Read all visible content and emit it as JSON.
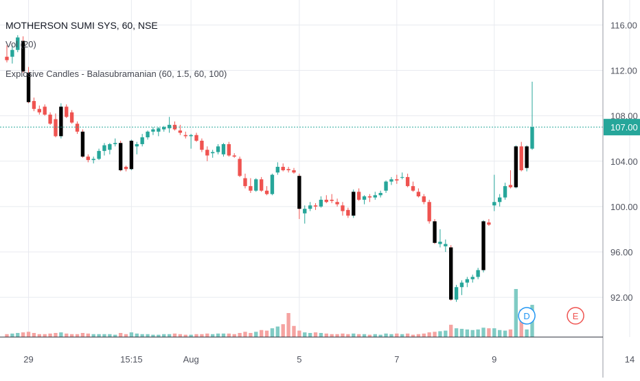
{
  "legend": {
    "title": "MOTHERSON SUMI SYS, 60, NSE",
    "volume": "Vol (20)",
    "indicator": "Explosive Candles - Balasubramanian (60, 1.5, 60, 100)"
  },
  "colors": {
    "up": "#26a69a",
    "down": "#ef5350",
    "explosive": "#000000",
    "vol_up": "#80cbc4",
    "vol_down": "#f5a3a1",
    "last_price_bg": "#26a69a",
    "grid": "#e8eaef",
    "axis_text": "#50535e",
    "dividend_badge": "#2196f3",
    "earnings_badge": "#ef5350"
  },
  "chart_data": {
    "type": "candlestick",
    "title": "MOTHERSON SUMI SYS, 60, NSE",
    "y_axis_ticks": [
      "116.00",
      "112.00",
      "108.00",
      "104.00",
      "100.00",
      "96.00",
      "92.00"
    ],
    "x_axis_ticks": [
      "29",
      "15:15",
      "Aug",
      "5",
      "7",
      "9",
      "14"
    ],
    "last_price": "107.00",
    "ylim": [
      88.5,
      118.2
    ],
    "grid": true,
    "event_badges": [
      {
        "label": "D",
        "kind": "dividend"
      },
      {
        "label": "E",
        "kind": "earnings"
      }
    ],
    "candles": [
      {
        "o": 113.2,
        "h": 114.2,
        "l": 112.7,
        "c": 112.9,
        "v": 0.5
      },
      {
        "o": 113.2,
        "h": 114.2,
        "l": 112.6,
        "c": 113.8,
        "v": 0.6
      },
      {
        "o": 113.8,
        "h": 115.1,
        "l": 113.6,
        "c": 114.9,
        "v": 0.7
      },
      {
        "o": 114.6,
        "h": 115.0,
        "l": 111.8,
        "c": 111.9,
        "v": 0.8,
        "x": true
      },
      {
        "o": 111.8,
        "h": 112.3,
        "l": 109.1,
        "c": 109.2,
        "v": 0.9,
        "x": true
      },
      {
        "o": 109.3,
        "h": 109.6,
        "l": 108.4,
        "c": 108.6,
        "v": 0.7
      },
      {
        "o": 108.6,
        "h": 108.9,
        "l": 108.1,
        "c": 108.3,
        "v": 0.5
      },
      {
        "o": 108.8,
        "h": 109.0,
        "l": 108.0,
        "c": 108.1,
        "v": 0.5
      },
      {
        "o": 108.1,
        "h": 108.3,
        "l": 107.2,
        "c": 107.3,
        "v": 0.6
      },
      {
        "o": 107.7,
        "h": 108.2,
        "l": 106.1,
        "c": 106.2,
        "v": 0.7
      },
      {
        "o": 106.2,
        "h": 109.1,
        "l": 106.0,
        "c": 108.8,
        "v": 0.8,
        "x": true
      },
      {
        "o": 108.8,
        "h": 109.0,
        "l": 107.8,
        "c": 107.9,
        "v": 0.6
      },
      {
        "o": 108.3,
        "h": 108.5,
        "l": 107.3,
        "c": 107.4,
        "v": 0.5
      },
      {
        "o": 107.3,
        "h": 107.5,
        "l": 106.4,
        "c": 106.6,
        "v": 0.5
      },
      {
        "o": 106.6,
        "h": 106.8,
        "l": 104.3,
        "c": 104.4,
        "v": 0.7,
        "x": true
      },
      {
        "o": 104.4,
        "h": 104.6,
        "l": 103.9,
        "c": 104.1,
        "v": 0.6
      },
      {
        "o": 104.1,
        "h": 104.4,
        "l": 103.8,
        "c": 104.2,
        "v": 0.5
      },
      {
        "o": 104.2,
        "h": 105.1,
        "l": 104.1,
        "c": 104.9,
        "v": 0.5
      },
      {
        "o": 104.9,
        "h": 105.6,
        "l": 104.5,
        "c": 105.4,
        "v": 0.5
      },
      {
        "o": 105.0,
        "h": 105.6,
        "l": 104.6,
        "c": 105.5,
        "v": 0.5
      },
      {
        "o": 105.5,
        "h": 106.0,
        "l": 105.3,
        "c": 105.6,
        "v": 0.4
      },
      {
        "o": 105.6,
        "h": 105.8,
        "l": 103.1,
        "c": 103.2,
        "v": 0.7,
        "x": true
      },
      {
        "o": 103.5,
        "h": 103.6,
        "l": 103.1,
        "c": 103.3,
        "v": 0.5
      },
      {
        "o": 103.3,
        "h": 105.9,
        "l": 103.2,
        "c": 105.8,
        "v": 0.8,
        "x": true
      },
      {
        "o": 105.3,
        "h": 105.7,
        "l": 104.6,
        "c": 105.5,
        "v": 0.6
      },
      {
        "o": 105.5,
        "h": 106.4,
        "l": 105.3,
        "c": 106.1,
        "v": 0.5
      },
      {
        "o": 106.1,
        "h": 106.7,
        "l": 105.9,
        "c": 106.6,
        "v": 0.5
      },
      {
        "o": 106.6,
        "h": 107.0,
        "l": 106.3,
        "c": 106.8,
        "v": 0.4
      },
      {
        "o": 106.6,
        "h": 107.0,
        "l": 106.2,
        "c": 106.9,
        "v": 0.4
      },
      {
        "o": 106.8,
        "h": 107.1,
        "l": 106.6,
        "c": 107.0,
        "v": 0.5
      },
      {
        "o": 106.9,
        "h": 107.9,
        "l": 106.5,
        "c": 107.2,
        "v": 0.5
      },
      {
        "o": 107.2,
        "h": 107.5,
        "l": 106.7,
        "c": 106.8,
        "v": 0.6
      },
      {
        "o": 106.7,
        "h": 107.2,
        "l": 106.3,
        "c": 106.5,
        "v": 0.5
      },
      {
        "o": 106.3,
        "h": 106.6,
        "l": 106.0,
        "c": 106.2,
        "v": 0.4
      },
      {
        "o": 106.2,
        "h": 106.4,
        "l": 105.1,
        "c": 106.3,
        "v": 0.4
      },
      {
        "o": 106.3,
        "h": 106.5,
        "l": 105.7,
        "c": 105.8,
        "v": 0.5
      },
      {
        "o": 105.8,
        "h": 106.0,
        "l": 104.8,
        "c": 105.0,
        "v": 0.5
      },
      {
        "o": 105.0,
        "h": 105.3,
        "l": 104.0,
        "c": 104.5,
        "v": 0.6
      },
      {
        "o": 104.7,
        "h": 105.0,
        "l": 104.3,
        "c": 104.8,
        "v": 0.5
      },
      {
        "o": 104.8,
        "h": 105.5,
        "l": 104.6,
        "c": 105.3,
        "v": 0.6
      },
      {
        "o": 104.6,
        "h": 105.6,
        "l": 104.4,
        "c": 105.5,
        "v": 0.6
      },
      {
        "o": 105.5,
        "h": 105.7,
        "l": 104.4,
        "c": 104.5,
        "v": 0.6
      },
      {
        "o": 104.5,
        "h": 104.7,
        "l": 104.3,
        "c": 104.4,
        "v": 0.5
      },
      {
        "o": 104.2,
        "h": 104.4,
        "l": 102.6,
        "c": 102.7,
        "v": 0.7
      },
      {
        "o": 102.5,
        "h": 102.9,
        "l": 101.6,
        "c": 101.8,
        "v": 0.9
      },
      {
        "o": 101.8,
        "h": 102.5,
        "l": 101.2,
        "c": 101.4,
        "v": 0.7
      },
      {
        "o": 101.4,
        "h": 102.5,
        "l": 101.3,
        "c": 102.4,
        "v": 0.9
      },
      {
        "o": 102.4,
        "h": 102.6,
        "l": 101.3,
        "c": 101.4,
        "v": 1.2
      },
      {
        "o": 101.4,
        "h": 101.8,
        "l": 101.0,
        "c": 101.1,
        "v": 1.1
      },
      {
        "o": 101.1,
        "h": 102.9,
        "l": 101.0,
        "c": 102.8,
        "v": 1.5
      },
      {
        "o": 103.0,
        "h": 103.9,
        "l": 102.8,
        "c": 103.5,
        "v": 1.8
      },
      {
        "o": 103.5,
        "h": 103.8,
        "l": 103.1,
        "c": 103.2,
        "v": 2.2
      },
      {
        "o": 103.3,
        "h": 103.5,
        "l": 103.0,
        "c": 103.2,
        "v": 4.1
      },
      {
        "o": 103.2,
        "h": 103.4,
        "l": 102.9,
        "c": 103.0,
        "v": 1.9
      },
      {
        "o": 102.7,
        "h": 102.9,
        "l": 98.9,
        "c": 99.8,
        "v": 1.1,
        "x": true
      },
      {
        "o": 99.4,
        "h": 100.1,
        "l": 98.5,
        "c": 99.8,
        "v": 0.8
      },
      {
        "o": 99.8,
        "h": 100.4,
        "l": 99.6,
        "c": 100.1,
        "v": 0.7
      },
      {
        "o": 100.1,
        "h": 100.3,
        "l": 99.7,
        "c": 100.0,
        "v": 0.8
      },
      {
        "o": 100.0,
        "h": 100.9,
        "l": 99.9,
        "c": 100.6,
        "v": 0.7
      },
      {
        "o": 100.6,
        "h": 101.0,
        "l": 100.3,
        "c": 100.4,
        "v": 0.6
      },
      {
        "o": 100.6,
        "h": 101.1,
        "l": 100.3,
        "c": 100.5,
        "v": 0.5
      },
      {
        "o": 100.4,
        "h": 100.7,
        "l": 100.0,
        "c": 100.2,
        "v": 0.5
      },
      {
        "o": 100.1,
        "h": 100.4,
        "l": 99.2,
        "c": 99.6,
        "v": 0.6
      },
      {
        "o": 99.7,
        "h": 99.9,
        "l": 99.0,
        "c": 99.2,
        "v": 0.5
      },
      {
        "o": 99.2,
        "h": 101.5,
        "l": 99.0,
        "c": 101.3,
        "v": 0.6,
        "x": true
      },
      {
        "o": 101.3,
        "h": 101.6,
        "l": 100.5,
        "c": 100.6,
        "v": 0.5
      },
      {
        "o": 100.6,
        "h": 101.0,
        "l": 100.2,
        "c": 100.9,
        "v": 0.5
      },
      {
        "o": 100.9,
        "h": 101.1,
        "l": 100.4,
        "c": 100.8,
        "v": 0.4
      },
      {
        "o": 100.8,
        "h": 101.3,
        "l": 100.6,
        "c": 101.0,
        "v": 0.5
      },
      {
        "o": 101.0,
        "h": 101.4,
        "l": 100.8,
        "c": 101.2,
        "v": 0.4
      },
      {
        "o": 101.4,
        "h": 102.3,
        "l": 101.2,
        "c": 102.2,
        "v": 0.6
      },
      {
        "o": 102.2,
        "h": 102.6,
        "l": 101.9,
        "c": 102.4,
        "v": 0.5
      },
      {
        "o": 102.4,
        "h": 102.8,
        "l": 102.0,
        "c": 102.3,
        "v": 0.6
      },
      {
        "o": 102.6,
        "h": 103.0,
        "l": 102.4,
        "c": 102.6,
        "v": 0.5
      },
      {
        "o": 102.6,
        "h": 102.9,
        "l": 101.7,
        "c": 101.8,
        "v": 0.6
      },
      {
        "o": 101.8,
        "h": 102.2,
        "l": 101.3,
        "c": 101.4,
        "v": 0.4
      },
      {
        "o": 101.3,
        "h": 101.6,
        "l": 100.8,
        "c": 100.9,
        "v": 0.5
      },
      {
        "o": 100.9,
        "h": 101.1,
        "l": 100.2,
        "c": 100.4,
        "v": 0.6
      },
      {
        "o": 100.4,
        "h": 100.6,
        "l": 98.5,
        "c": 98.7,
        "v": 0.8
      },
      {
        "o": 98.7,
        "h": 98.9,
        "l": 96.7,
        "c": 96.8,
        "v": 0.9,
        "x": true
      },
      {
        "o": 96.7,
        "h": 98.0,
        "l": 96.4,
        "c": 96.9,
        "v": 1.0
      },
      {
        "o": 96.5,
        "h": 97.1,
        "l": 96.0,
        "c": 96.7,
        "v": 1.1
      },
      {
        "o": 96.4,
        "h": 96.6,
        "l": 91.7,
        "c": 91.8,
        "v": 2.1,
        "x": true
      },
      {
        "o": 91.8,
        "h": 93.1,
        "l": 91.6,
        "c": 92.9,
        "v": 1.5
      },
      {
        "o": 92.9,
        "h": 93.5,
        "l": 92.2,
        "c": 93.3,
        "v": 1.4
      },
      {
        "o": 93.3,
        "h": 93.8,
        "l": 92.9,
        "c": 93.6,
        "v": 1.3
      },
      {
        "o": 93.6,
        "h": 94.0,
        "l": 93.3,
        "c": 93.8,
        "v": 1.2
      },
      {
        "o": 93.8,
        "h": 94.6,
        "l": 93.6,
        "c": 94.4,
        "v": 1.3
      },
      {
        "o": 94.4,
        "h": 98.8,
        "l": 94.2,
        "c": 98.7,
        "v": 1.6,
        "x": true
      },
      {
        "o": 98.6,
        "h": 98.9,
        "l": 98.3,
        "c": 98.4,
        "v": 1.5
      },
      {
        "o": 100.1,
        "h": 102.8,
        "l": 99.6,
        "c": 100.4,
        "v": 1.5
      },
      {
        "o": 100.4,
        "h": 101.1,
        "l": 100.0,
        "c": 100.8,
        "v": 1.2
      },
      {
        "o": 100.8,
        "h": 102.1,
        "l": 100.6,
        "c": 101.8,
        "v": 1.1
      },
      {
        "o": 101.9,
        "h": 103.2,
        "l": 101.6,
        "c": 101.7,
        "v": 1.3
      },
      {
        "o": 101.7,
        "h": 105.4,
        "l": 101.6,
        "c": 105.3,
        "v": 8.2,
        "x": true
      },
      {
        "o": 105.3,
        "h": 105.7,
        "l": 103.1,
        "c": 103.2,
        "v": 4.7
      },
      {
        "o": 103.4,
        "h": 105.4,
        "l": 103.1,
        "c": 105.3,
        "v": 1.3,
        "x": true
      },
      {
        "o": 105.1,
        "h": 111.0,
        "l": 105.0,
        "c": 107.0,
        "v": 5.5
      }
    ]
  }
}
